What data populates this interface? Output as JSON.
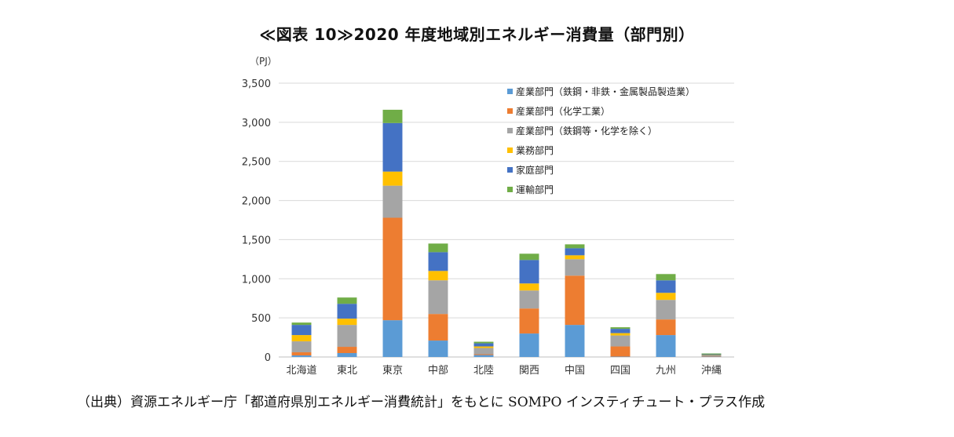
{
  "title": "≪図表 10≫2020 年度地域別エネルギー消費量（部門別）",
  "source": "（出典）資源エネルギー庁「都道府県別エネルギー消費統計」をもとに SOMPO インスティチュート・プラス作成",
  "chart_data": {
    "type": "bar",
    "stacked": true,
    "unit_label": "（PJ）",
    "ylim": [
      0,
      3500
    ],
    "yticks": [
      0,
      500,
      1000,
      1500,
      2000,
      2500,
      3000,
      3500
    ],
    "ytick_labels": [
      "0",
      "500",
      "1,000",
      "1,500",
      "2,000",
      "2,500",
      "3,000",
      "3,500"
    ],
    "grid": true,
    "legend_position": "top-right",
    "categories": [
      "北海道",
      "東北",
      "東京",
      "中部",
      "北陸",
      "関西",
      "中国",
      "四国",
      "九州",
      "沖縄"
    ],
    "series": [
      {
        "name": "産業部門（鉄鋼・非鉄・金属製品製造業）",
        "color": "#5b9bd5",
        "values": [
          20,
          50,
          470,
          210,
          25,
          300,
          410,
          5,
          280,
          5
        ]
      },
      {
        "name": "産業部門（化学工業）",
        "color": "#ed7d31",
        "values": [
          40,
          80,
          1310,
          340,
          10,
          320,
          630,
          130,
          200,
          5
        ]
      },
      {
        "name": "産業部門（鉄鋼等・化学を除く）",
        "color": "#a5a5a5",
        "values": [
          140,
          280,
          410,
          430,
          80,
          230,
          210,
          140,
          250,
          10
        ]
      },
      {
        "name": "業務部門",
        "color": "#ffc000",
        "values": [
          80,
          80,
          180,
          120,
          20,
          90,
          50,
          30,
          90,
          5
        ]
      },
      {
        "name": "家庭部門",
        "color": "#4472c4",
        "values": [
          130,
          190,
          620,
          240,
          40,
          300,
          90,
          55,
          160,
          10
        ]
      },
      {
        "name": "運輸部門",
        "color": "#70ad47",
        "values": [
          30,
          80,
          170,
          110,
          20,
          80,
          50,
          20,
          80,
          10
        ]
      }
    ]
  }
}
